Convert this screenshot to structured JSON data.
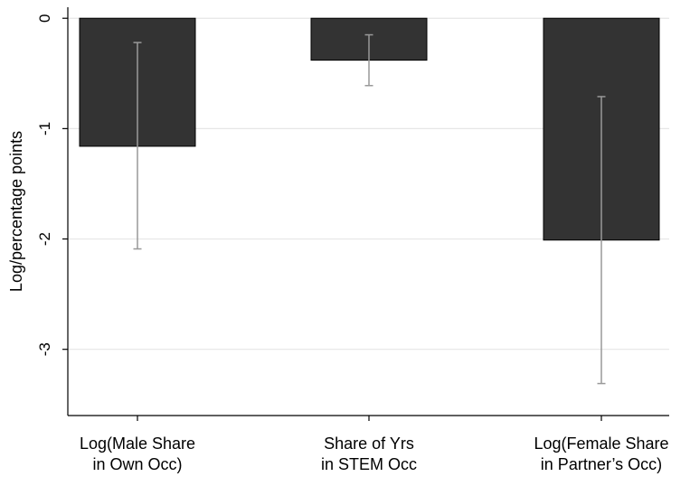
{
  "chart_data": {
    "type": "bar",
    "title": "",
    "xlabel": "",
    "ylabel": "Log/percentage points",
    "categories": [
      [
        "Log(Male Share",
        "in Own Occ)"
      ],
      [
        "Share of Yrs",
        "in STEM Occ"
      ],
      [
        "Log(Female Share",
        "in Partner’s Occ)"
      ]
    ],
    "values": [
      -1.16,
      -0.38,
      -2.01
    ],
    "error_bars": [
      {
        "low": -2.09,
        "high": -0.22
      },
      {
        "low": -0.61,
        "high": -0.15
      },
      {
        "low": -3.31,
        "high": -0.71
      }
    ],
    "ylim": [
      -3.6,
      0.1
    ],
    "yticks": [
      0,
      -1,
      -2,
      -3
    ],
    "ytick_labels": [
      "0",
      "-1",
      "-2",
      "-3"
    ],
    "grid": true,
    "colors": {
      "bar_fill": "#333333",
      "bar_stroke": "#000000",
      "error_bar": "#999999",
      "grid": "#e6e6e6",
      "axis": "#000000"
    }
  }
}
